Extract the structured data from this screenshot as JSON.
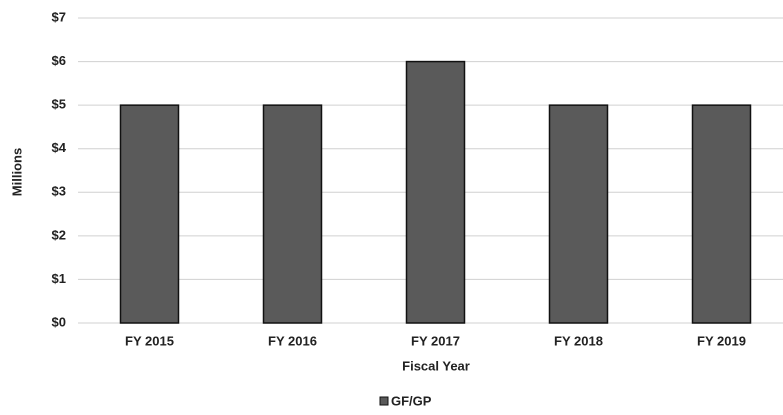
{
  "chart_data": {
    "type": "bar",
    "categories": [
      "FY 2015",
      "FY 2016",
      "FY 2017",
      "FY 2018",
      "FY 2019"
    ],
    "series": [
      {
        "name": "GF/GP",
        "color": "#5a5a5a",
        "values": [
          5,
          5,
          6,
          5,
          5
        ]
      }
    ],
    "x_label": "Fiscal Year",
    "y_label": "Millions",
    "ylim": [
      0,
      7
    ],
    "yticks": [
      {
        "value": 0,
        "label": "$0"
      },
      {
        "value": 1,
        "label": "$1"
      },
      {
        "value": 2,
        "label": "$2"
      },
      {
        "value": 3,
        "label": "$3"
      },
      {
        "value": 4,
        "label": "$4"
      },
      {
        "value": 5,
        "label": "$5"
      },
      {
        "value": 6,
        "label": "$6"
      },
      {
        "value": 7,
        "label": "$7"
      }
    ],
    "grid": true,
    "legend": "bottom"
  }
}
